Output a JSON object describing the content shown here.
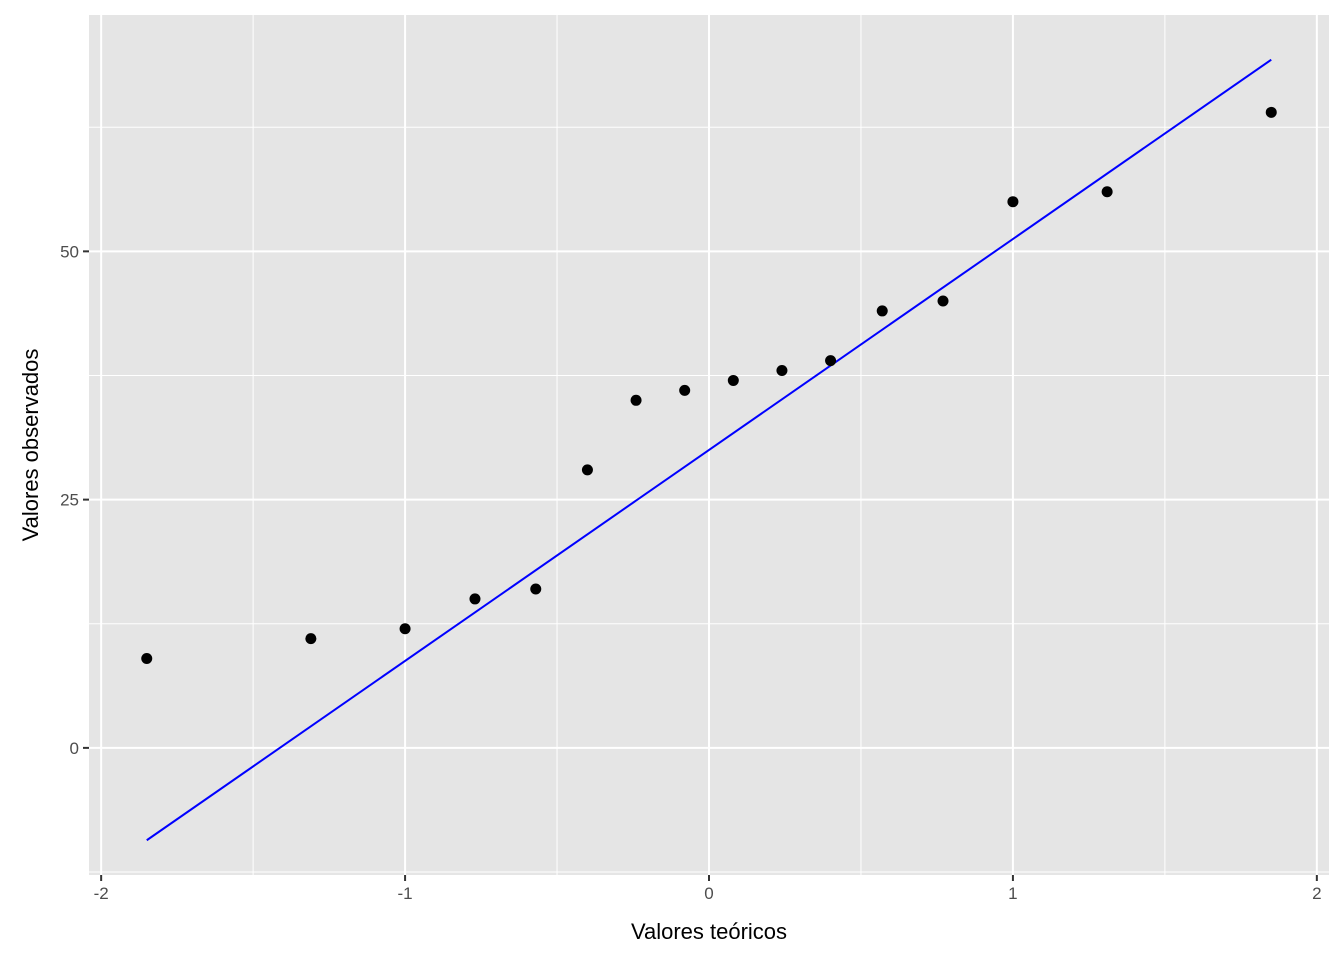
{
  "chart_data": {
    "type": "scatter",
    "title": "",
    "xlabel": "Valores teóricos",
    "ylabel": "Valores observados",
    "xlim": [
      -2.04,
      2.04
    ],
    "ylim": [
      -12.8,
      73.8
    ],
    "x_ticks": [
      -2,
      -1,
      0,
      1,
      2
    ],
    "x_tick_labels": [
      "-2",
      "-1",
      "0",
      "1",
      "2"
    ],
    "y_ticks": [
      0,
      25,
      50
    ],
    "y_tick_labels": [
      "0",
      "25",
      "50"
    ],
    "grid": true,
    "legend": "none",
    "points": [
      {
        "x": -1.85,
        "y": 9
      },
      {
        "x": -1.31,
        "y": 11
      },
      {
        "x": -1.0,
        "y": 12
      },
      {
        "x": -0.77,
        "y": 15
      },
      {
        "x": -0.57,
        "y": 16
      },
      {
        "x": -0.4,
        "y": 28
      },
      {
        "x": -0.24,
        "y": 35
      },
      {
        "x": -0.08,
        "y": 36
      },
      {
        "x": 0.08,
        "y": 37
      },
      {
        "x": 0.24,
        "y": 38
      },
      {
        "x": 0.4,
        "y": 39
      },
      {
        "x": 0.57,
        "y": 44
      },
      {
        "x": 0.77,
        "y": 45
      },
      {
        "x": 1.0,
        "y": 55
      },
      {
        "x": 1.31,
        "y": 56
      },
      {
        "x": 1.85,
        "y": 64
      }
    ],
    "reference_line": {
      "x": [
        -1.85,
        1.85
      ],
      "y": [
        -9.3,
        69.3
      ],
      "color": "#0000ff"
    },
    "colors": {
      "panel": "#e5e5e5",
      "grid": "#ffffff",
      "point": "#000000",
      "line": "#0000ff"
    }
  }
}
